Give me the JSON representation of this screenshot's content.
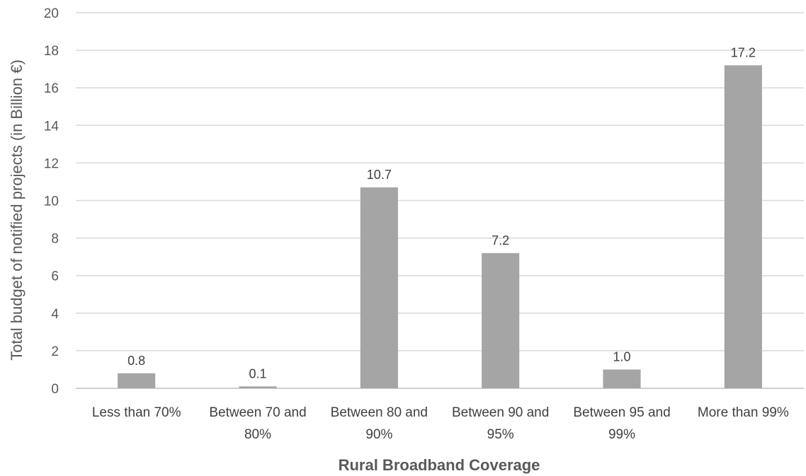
{
  "chart_data": {
    "type": "bar",
    "title": "",
    "xlabel": "Rural Broadband Coverage",
    "ylabel": "Total budget of notified projects (in Billion €)",
    "ylim": [
      0,
      20
    ],
    "yticks": [
      0,
      2,
      4,
      6,
      8,
      10,
      12,
      14,
      16,
      18,
      20
    ],
    "grid": true,
    "legend": "none",
    "bar_color": "#a5a5a5",
    "categories": [
      [
        "Less than 70%"
      ],
      [
        "Between 70 and",
        "80%"
      ],
      [
        "Between 80 and",
        "90%"
      ],
      [
        "Between 90 and",
        "95%"
      ],
      [
        "Between 95 and",
        "99%"
      ],
      [
        "More than 99%"
      ]
    ],
    "values": [
      0.8,
      0.1,
      10.7,
      7.2,
      1.0,
      17.2
    ],
    "data_labels": [
      "0.8",
      "0.1",
      "10.7",
      "7.2",
      "1.0",
      "17.2"
    ]
  }
}
